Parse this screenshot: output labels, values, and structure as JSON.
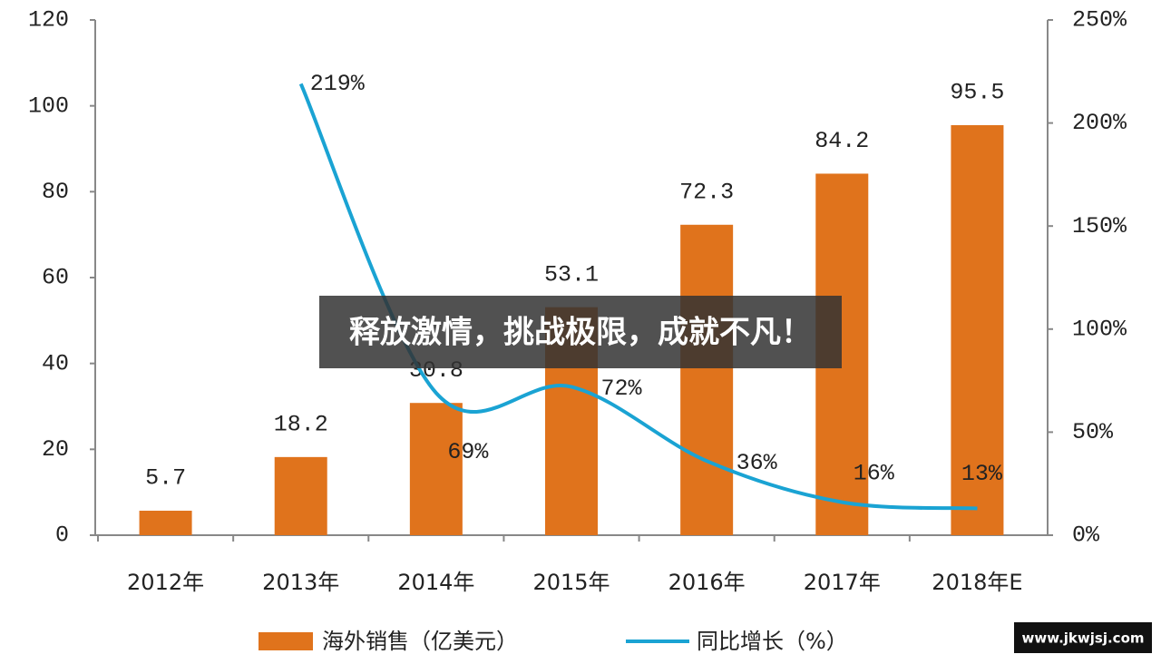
{
  "chart_data": {
    "type": "bar-line",
    "categories": [
      "2012年",
      "2013年",
      "2014年",
      "2015年",
      "2016年",
      "2017年",
      "2018年E"
    ],
    "series": [
      {
        "name": "海外销售（亿美元）",
        "color": "#e0731c",
        "type": "bar",
        "values": [
          5.7,
          18.2,
          30.8,
          53.1,
          72.3,
          84.2,
          95.5
        ]
      },
      {
        "name": "同比增长（%）",
        "color": "#1aa3d3",
        "type": "line",
        "axis": "y2",
        "values": [
          null,
          219,
          69,
          72,
          36,
          16,
          13
        ],
        "value_labels": [
          null,
          "219%",
          "69%",
          "72%",
          "36%",
          "16%",
          "13%"
        ]
      }
    ],
    "ylim": [
      0,
      120
    ],
    "yticks": [
      0,
      20,
      40,
      60,
      80,
      100,
      120
    ],
    "y2lim": [
      0,
      250
    ],
    "y2ticks": [
      {
        "value": 0,
        "label": "0%"
      },
      {
        "value": 50,
        "label": "50%"
      },
      {
        "value": 100,
        "label": "100%"
      },
      {
        "value": 150,
        "label": "150%"
      },
      {
        "value": 200,
        "label": "200%"
      },
      {
        "value": 250,
        "label": "250%"
      }
    ],
    "legend": "bottom",
    "grid": false
  },
  "overlay": {
    "banner": "释放激情，挑战极限，成就不凡！",
    "watermark": "www.jkwjsj.com"
  }
}
